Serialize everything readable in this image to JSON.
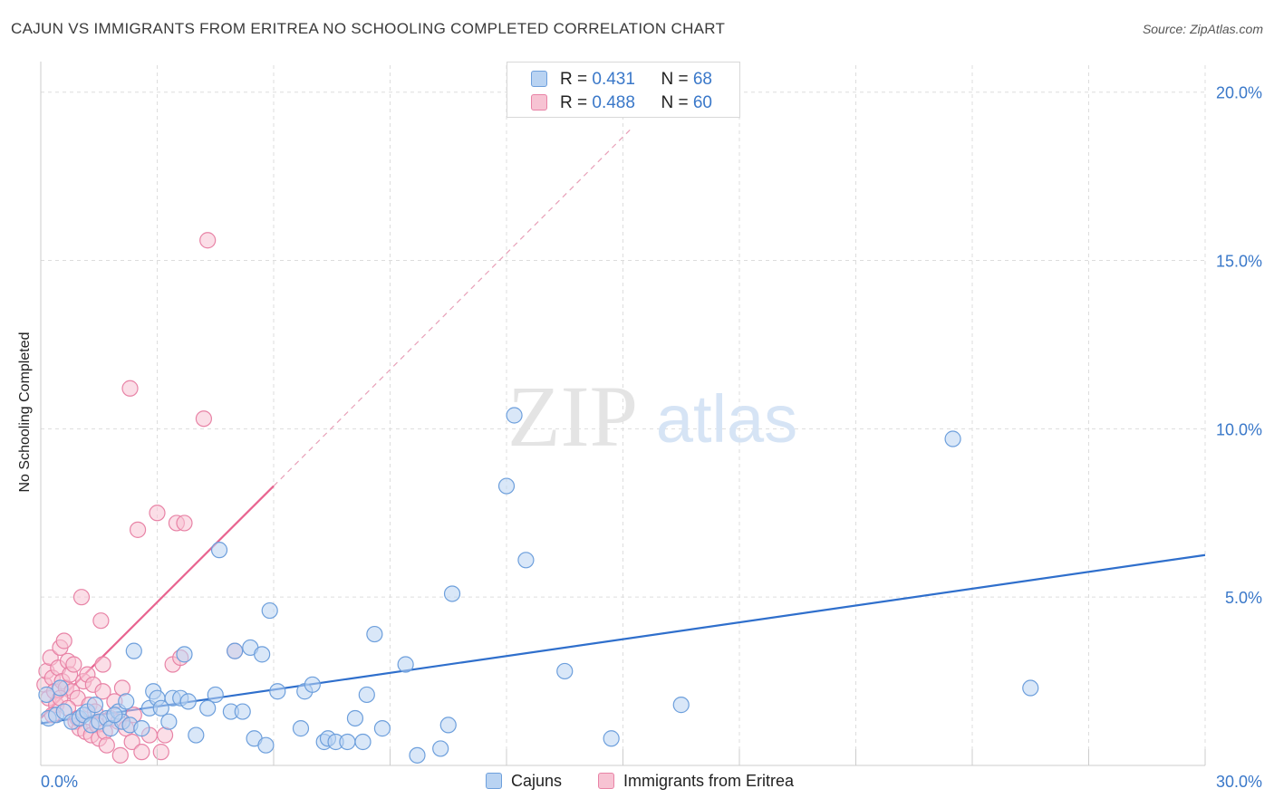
{
  "header": {
    "title": "CAJUN VS IMMIGRANTS FROM ERITREA NO SCHOOLING COMPLETED CORRELATION CHART",
    "source": "Source: ZipAtlas.com"
  },
  "watermark": {
    "zip": "ZIP",
    "atlas": "atlas"
  },
  "legend": {
    "r_label": "R = ",
    "n_label": "N = ",
    "rows": [
      {
        "r": "0.431",
        "n": "68"
      },
      {
        "r": "0.488",
        "n": "60"
      }
    ]
  },
  "colors": {
    "blue_fill": "#b9d3f2",
    "blue_stroke": "#6d9fdc",
    "blue_line": "#2f6fcc",
    "pink_fill": "#f7c3d3",
    "pink_stroke": "#e883a6",
    "pink_line": "#e8638f",
    "axis_text": "#3a78c9",
    "grid": "#dddddd"
  },
  "chart_data": {
    "type": "scatter",
    "title": "CAJUN VS IMMIGRANTS FROM ERITREA NO SCHOOLING COMPLETED CORRELATION CHART",
    "xlabel": "",
    "ylabel": "No Schooling Completed",
    "xlim": [
      0,
      30
    ],
    "ylim": [
      0,
      20.8
    ],
    "x_tick_labels": [
      "0.0%",
      "30.0%"
    ],
    "y_ticks": [
      5,
      10,
      15,
      20
    ],
    "y_tick_labels": [
      "5.0%",
      "10.0%",
      "15.0%",
      "20.0%"
    ],
    "grid": true,
    "legend_position": "bottom",
    "series": [
      {
        "name": "Cajuns",
        "color": "#6d9fdc",
        "points": [
          [
            0.2,
            1.4
          ],
          [
            0.4,
            1.5
          ],
          [
            0.5,
            2.3
          ],
          [
            0.6,
            1.6
          ],
          [
            0.8,
            1.3
          ],
          [
            1.0,
            1.4
          ],
          [
            1.1,
            1.5
          ],
          [
            1.2,
            1.6
          ],
          [
            1.3,
            1.2
          ],
          [
            1.4,
            1.8
          ],
          [
            1.5,
            1.3
          ],
          [
            1.7,
            1.4
          ],
          [
            1.8,
            1.1
          ],
          [
            2.0,
            1.6
          ],
          [
            2.1,
            1.3
          ],
          [
            2.2,
            1.9
          ],
          [
            2.3,
            1.2
          ],
          [
            2.4,
            3.4
          ],
          [
            2.6,
            1.1
          ],
          [
            2.8,
            1.7
          ],
          [
            2.9,
            2.2
          ],
          [
            3.0,
            2.0
          ],
          [
            3.1,
            1.7
          ],
          [
            3.3,
            1.3
          ],
          [
            3.4,
            2.0
          ],
          [
            3.6,
            2.0
          ],
          [
            3.7,
            3.3
          ],
          [
            3.8,
            1.9
          ],
          [
            4.0,
            0.9
          ],
          [
            4.3,
            1.7
          ],
          [
            4.5,
            2.1
          ],
          [
            4.6,
            6.4
          ],
          [
            4.9,
            1.6
          ],
          [
            5.0,
            3.4
          ],
          [
            5.2,
            1.6
          ],
          [
            5.4,
            3.5
          ],
          [
            5.5,
            0.8
          ],
          [
            5.7,
            3.3
          ],
          [
            5.8,
            0.6
          ],
          [
            5.9,
            4.6
          ],
          [
            6.1,
            2.2
          ],
          [
            6.7,
            1.1
          ],
          [
            6.8,
            2.2
          ],
          [
            7.0,
            2.4
          ],
          [
            7.3,
            0.7
          ],
          [
            7.4,
            0.8
          ],
          [
            7.6,
            0.7
          ],
          [
            7.9,
            0.7
          ],
          [
            8.1,
            1.4
          ],
          [
            8.3,
            0.7
          ],
          [
            8.4,
            2.1
          ],
          [
            8.6,
            3.9
          ],
          [
            8.8,
            1.1
          ],
          [
            9.4,
            3.0
          ],
          [
            9.7,
            0.3
          ],
          [
            10.3,
            0.5
          ],
          [
            10.5,
            1.2
          ],
          [
            10.6,
            5.1
          ],
          [
            12.0,
            8.3
          ],
          [
            12.2,
            10.4
          ],
          [
            12.5,
            6.1
          ],
          [
            13.5,
            2.8
          ],
          [
            14.7,
            0.8
          ],
          [
            16.5,
            1.8
          ],
          [
            23.5,
            9.7
          ],
          [
            25.5,
            2.3
          ],
          [
            0.15,
            2.1
          ],
          [
            1.9,
            1.5
          ]
        ]
      },
      {
        "name": "Immigrants from Eritrea",
        "color": "#e883a6",
        "points": [
          [
            0.1,
            2.4
          ],
          [
            0.15,
            2.8
          ],
          [
            0.2,
            2.0
          ],
          [
            0.25,
            3.2
          ],
          [
            0.3,
            2.6
          ],
          [
            0.35,
            2.2
          ],
          [
            0.4,
            1.8
          ],
          [
            0.45,
            2.9
          ],
          [
            0.5,
            3.5
          ],
          [
            0.55,
            2.5
          ],
          [
            0.6,
            3.7
          ],
          [
            0.65,
            2.3
          ],
          [
            0.7,
            3.1
          ],
          [
            0.75,
            2.7
          ],
          [
            0.8,
            2.2
          ],
          [
            0.85,
            3.0
          ],
          [
            0.9,
            1.3
          ],
          [
            0.95,
            2.0
          ],
          [
            1.0,
            1.1
          ],
          [
            1.05,
            5.0
          ],
          [
            1.1,
            2.5
          ],
          [
            1.15,
            1.0
          ],
          [
            1.2,
            2.7
          ],
          [
            1.25,
            1.8
          ],
          [
            1.3,
            0.9
          ],
          [
            1.35,
            2.4
          ],
          [
            1.4,
            1.6
          ],
          [
            1.45,
            1.2
          ],
          [
            1.5,
            0.8
          ],
          [
            1.55,
            4.3
          ],
          [
            1.6,
            3.0
          ],
          [
            1.65,
            1.0
          ],
          [
            1.7,
            0.6
          ],
          [
            1.8,
            1.4
          ],
          [
            1.9,
            1.9
          ],
          [
            2.0,
            1.3
          ],
          [
            2.05,
            0.3
          ],
          [
            2.1,
            2.3
          ],
          [
            2.2,
            1.1
          ],
          [
            2.3,
            11.2
          ],
          [
            2.35,
            0.7
          ],
          [
            2.4,
            1.5
          ],
          [
            2.5,
            7.0
          ],
          [
            2.6,
            0.4
          ],
          [
            2.8,
            0.9
          ],
          [
            3.0,
            7.5
          ],
          [
            3.1,
            0.4
          ],
          [
            3.2,
            0.9
          ],
          [
            3.4,
            3.0
          ],
          [
            3.5,
            7.2
          ],
          [
            3.6,
            3.2
          ],
          [
            3.7,
            7.2
          ],
          [
            4.2,
            10.3
          ],
          [
            4.3,
            15.6
          ],
          [
            5.0,
            3.4
          ],
          [
            0.3,
            1.5
          ],
          [
            0.5,
            2.0
          ],
          [
            0.7,
            1.7
          ],
          [
            0.95,
            1.4
          ],
          [
            1.6,
            2.2
          ]
        ]
      }
    ],
    "trendlines": [
      {
        "series": "Cajuns",
        "x": [
          0,
          30
        ],
        "y": [
          1.25,
          6.25
        ],
        "style": "solid"
      },
      {
        "series": "Immigrants from Eritrea",
        "x": [
          0,
          6.0
        ],
        "y": [
          1.4,
          8.3
        ],
        "style": "solid",
        "extension": {
          "x": [
            6.0,
            15.2
          ],
          "y": [
            8.3,
            18.9
          ],
          "style": "dashed"
        }
      }
    ]
  }
}
